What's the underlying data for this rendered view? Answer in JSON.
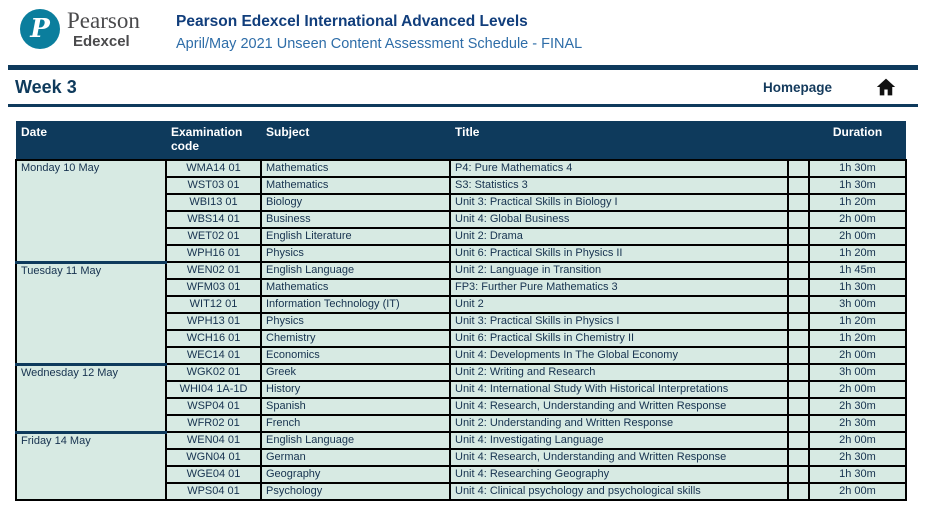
{
  "brand": {
    "logo_letter": "P",
    "name": "Pearson",
    "sub_name": "Edexcel"
  },
  "header": {
    "title": "Pearson Edexcel International Advanced Levels",
    "subtitle": "April/May 2021 Unseen Content Assessment Schedule - FINAL"
  },
  "week_bar": {
    "week": "Week 3",
    "homepage": "Homepage",
    "home_icon": "home-icon"
  },
  "colors": {
    "navy": "#0e3a5c",
    "title_blue": "#113e7c",
    "subtitle_blue": "#2e6da8",
    "row_green": "#d7eae3",
    "table_text": "#16324f",
    "logo_teal": "#0b7e9d",
    "border_black": "#000000"
  },
  "table": {
    "columns": [
      "Date",
      "Examination code",
      "Subject",
      "Title",
      "Duration"
    ],
    "groups": [
      {
        "date": "Monday 10 May",
        "rows": [
          {
            "code": "WMA14 01",
            "subject": "Mathematics",
            "title": "P4: Pure Mathematics 4",
            "duration": "1h 30m"
          },
          {
            "code": "WST03 01",
            "subject": "Mathematics",
            "title": "S3: Statistics 3",
            "duration": "1h 30m"
          },
          {
            "code": "WBI13 01",
            "subject": "Biology",
            "title": "Unit 3: Practical Skills in Biology I",
            "duration": "1h 20m"
          },
          {
            "code": "WBS14 01",
            "subject": "Business",
            "title": "Unit 4: Global Business",
            "duration": "2h 00m"
          },
          {
            "code": "WET02 01",
            "subject": "English Literature",
            "title": "Unit 2: Drama",
            "duration": "2h 00m"
          },
          {
            "code": "WPH16 01",
            "subject": "Physics",
            "title": "Unit 6: Practical Skills in Physics II",
            "duration": "1h 20m"
          }
        ]
      },
      {
        "date": "Tuesday 11 May",
        "rows": [
          {
            "code": "WEN02 01",
            "subject": "English Language",
            "title": "Unit 2: Language in Transition",
            "duration": "1h 45m"
          },
          {
            "code": "WFM03 01",
            "subject": "Mathematics",
            "title": "FP3: Further Pure Mathematics 3",
            "duration": "1h 30m"
          },
          {
            "code": "WIT12 01",
            "subject": "Information Technology (IT)",
            "title": "Unit 2",
            "duration": "3h 00m"
          },
          {
            "code": "WPH13 01",
            "subject": "Physics",
            "title": "Unit 3: Practical Skills in Physics I",
            "duration": "1h 20m"
          },
          {
            "code": "WCH16 01",
            "subject": "Chemistry",
            "title": "Unit 6: Practical Skills in Chemistry II",
            "duration": "1h 20m"
          },
          {
            "code": "WEC14 01",
            "subject": "Economics",
            "title": "Unit 4: Developments In The Global Economy",
            "duration": "2h 00m"
          }
        ]
      },
      {
        "date": "Wednesday 12 May",
        "rows": [
          {
            "code": "WGK02 01",
            "subject": "Greek",
            "title": "Unit 2: Writing and Research",
            "duration": "3h 00m"
          },
          {
            "code": "WHI04 1A-1D",
            "subject": "History",
            "title": "Unit 4: International Study With Historical Interpretations",
            "duration": "2h 00m"
          },
          {
            "code": "WSP04 01",
            "subject": "Spanish",
            "title": "Unit 4: Research, Understanding and Written Response",
            "duration": "2h 30m"
          },
          {
            "code": "WFR02 01",
            "subject": "French",
            "title": "Unit 2: Understanding and Written Response",
            "duration": "2h 30m"
          }
        ]
      },
      {
        "date": "Friday 14 May",
        "rows": [
          {
            "code": "WEN04 01",
            "subject": "English Language",
            "title": "Unit 4: Investigating Language",
            "duration": "2h 00m"
          },
          {
            "code": "WGN04 01",
            "subject": "German",
            "title": "Unit 4: Research, Understanding and Written Response",
            "duration": "2h 30m"
          },
          {
            "code": "WGE04 01",
            "subject": "Geography",
            "title": "Unit 4: Researching Geography",
            "duration": "1h 30m"
          },
          {
            "code": "WPS04 01",
            "subject": "Psychology",
            "title": "Unit 4: Clinical psychology and psychological skills",
            "duration": "2h 00m"
          }
        ]
      }
    ]
  }
}
